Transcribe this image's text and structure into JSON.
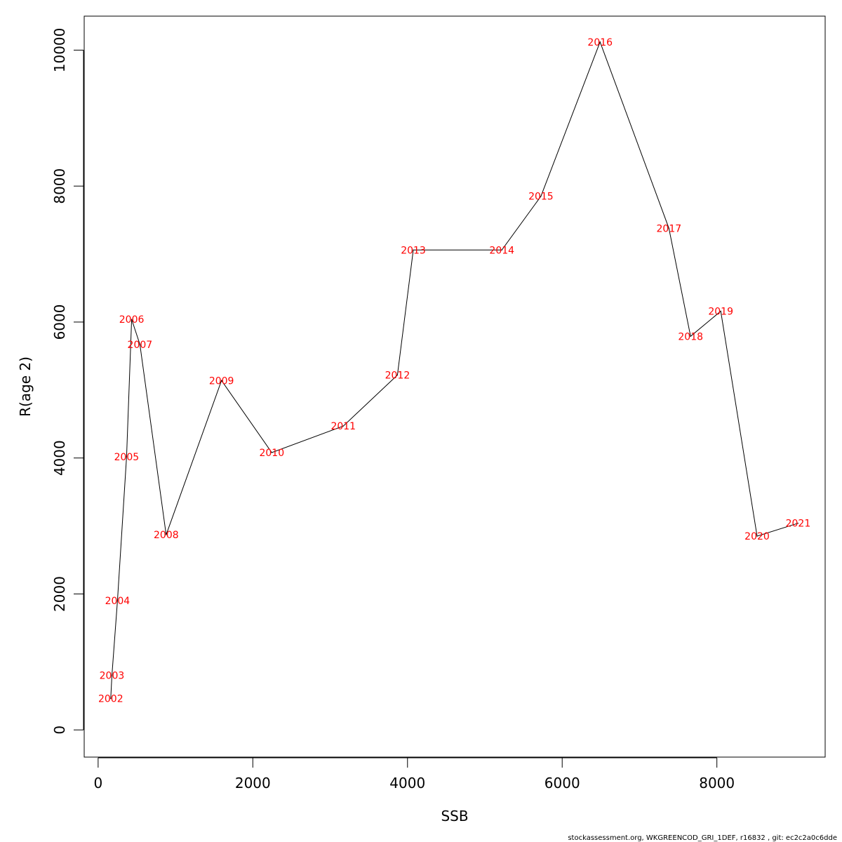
{
  "chart_data": {
    "type": "line",
    "xlabel": "SSB",
    "ylabel": "R(age 2)",
    "xlim": [
      -180,
      9400
    ],
    "ylim": [
      -400,
      10500
    ],
    "xticks": [
      0,
      2000,
      4000,
      6000,
      8000
    ],
    "yticks": [
      0,
      2000,
      4000,
      6000,
      8000,
      10000
    ],
    "x_tick_labels": [
      "0",
      "2000",
      "4000",
      "6000",
      "8000"
    ],
    "y_tick_labels": [
      "0",
      "2000",
      "4000",
      "6000",
      "8000",
      "10000"
    ],
    "grid": false,
    "line_color": "#000000",
    "label_color": "#ff0000",
    "points": [
      {
        "label": "2002",
        "x": 163,
        "y": 460
      },
      {
        "label": "2003",
        "x": 178,
        "y": 800
      },
      {
        "label": "2004",
        "x": 250,
        "y": 1900
      },
      {
        "label": "2005",
        "x": 368,
        "y": 4020
      },
      {
        "label": "2006",
        "x": 433,
        "y": 6040
      },
      {
        "label": "2007",
        "x": 540,
        "y": 5670
      },
      {
        "label": "2008",
        "x": 880,
        "y": 2870
      },
      {
        "label": "2009",
        "x": 1595,
        "y": 5140
      },
      {
        "label": "2010",
        "x": 2245,
        "y": 4080
      },
      {
        "label": "2011",
        "x": 3170,
        "y": 4470
      },
      {
        "label": "2012",
        "x": 3870,
        "y": 5220
      },
      {
        "label": "2013",
        "x": 4075,
        "y": 7060
      },
      {
        "label": "2014",
        "x": 5220,
        "y": 7060
      },
      {
        "label": "2015",
        "x": 5725,
        "y": 7850
      },
      {
        "label": "2016",
        "x": 6490,
        "y": 10120
      },
      {
        "label": "2017",
        "x": 7380,
        "y": 7380
      },
      {
        "label": "2018",
        "x": 7660,
        "y": 5790
      },
      {
        "label": "2019",
        "x": 8050,
        "y": 6160
      },
      {
        "label": "2020",
        "x": 8520,
        "y": 2850
      },
      {
        "label": "2021",
        "x": 9050,
        "y": 3040
      }
    ]
  },
  "footer": "stockassessment.org, WKGREENCOD_GRI_1DEF, r16832 , git: ec2c2a0c6dde"
}
